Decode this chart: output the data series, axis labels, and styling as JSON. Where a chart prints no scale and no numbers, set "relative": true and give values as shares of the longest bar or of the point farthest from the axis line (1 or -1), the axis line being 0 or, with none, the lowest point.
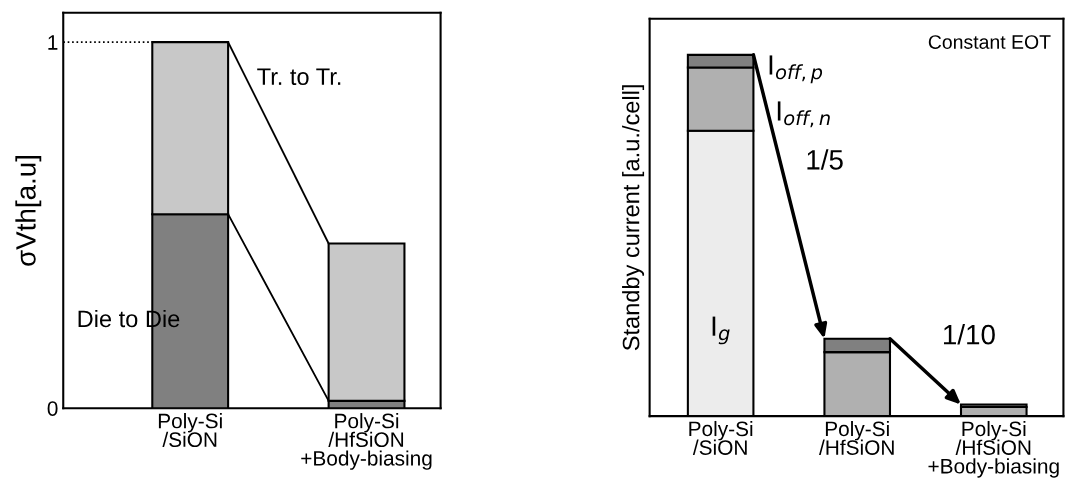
{
  "chart_data": [
    {
      "type": "bar",
      "stacked": true,
      "ylabel": "σVth[a.u]",
      "categories": [
        "Poly-Si\n/SiON",
        "Poly-Si\n/HfSiON\n+Body-biasing"
      ],
      "series": [
        {
          "name": "Die to Die",
          "color": "#808080",
          "values": [
            0.53,
            0.02
          ]
        },
        {
          "name": "Tr. to Tr.",
          "color": "#c8c8c8",
          "values": [
            0.47,
            0.43
          ]
        }
      ],
      "ylim": [
        0,
        1.08
      ],
      "yticks": [
        0,
        1
      ],
      "ref_lines": [
        {
          "axis": "y",
          "value": 1,
          "line_style": "dotted",
          "color": "#000000"
        }
      ],
      "grid": false,
      "legend": false
    },
    {
      "type": "bar",
      "stacked": true,
      "relative": true,
      "ylabel": "Standby current [a.u./cell]",
      "categories": [
        "Poly-Si\n/SiON",
        "Poly-Si\n/HfSiON",
        "Poly-Si\n/HfSiON\n+Body-biasing"
      ],
      "series": [
        {
          "name": "I$_{g}$",
          "color": "#ececec",
          "values": [
            0.79,
            0,
            0
          ]
        },
        {
          "name": "I$_{off,n}$",
          "color": "#b0b0b0",
          "values": [
            0.175,
            0.177,
            0.025
          ]
        },
        {
          "name": "I$_{off,p}$",
          "color": "#808080",
          "values": [
            0.035,
            0.037,
            0.007
          ]
        }
      ],
      "annotations": [
        "Constant EOT",
        "1/5",
        "1/10"
      ],
      "grid": false,
      "legend": false
    }
  ]
}
